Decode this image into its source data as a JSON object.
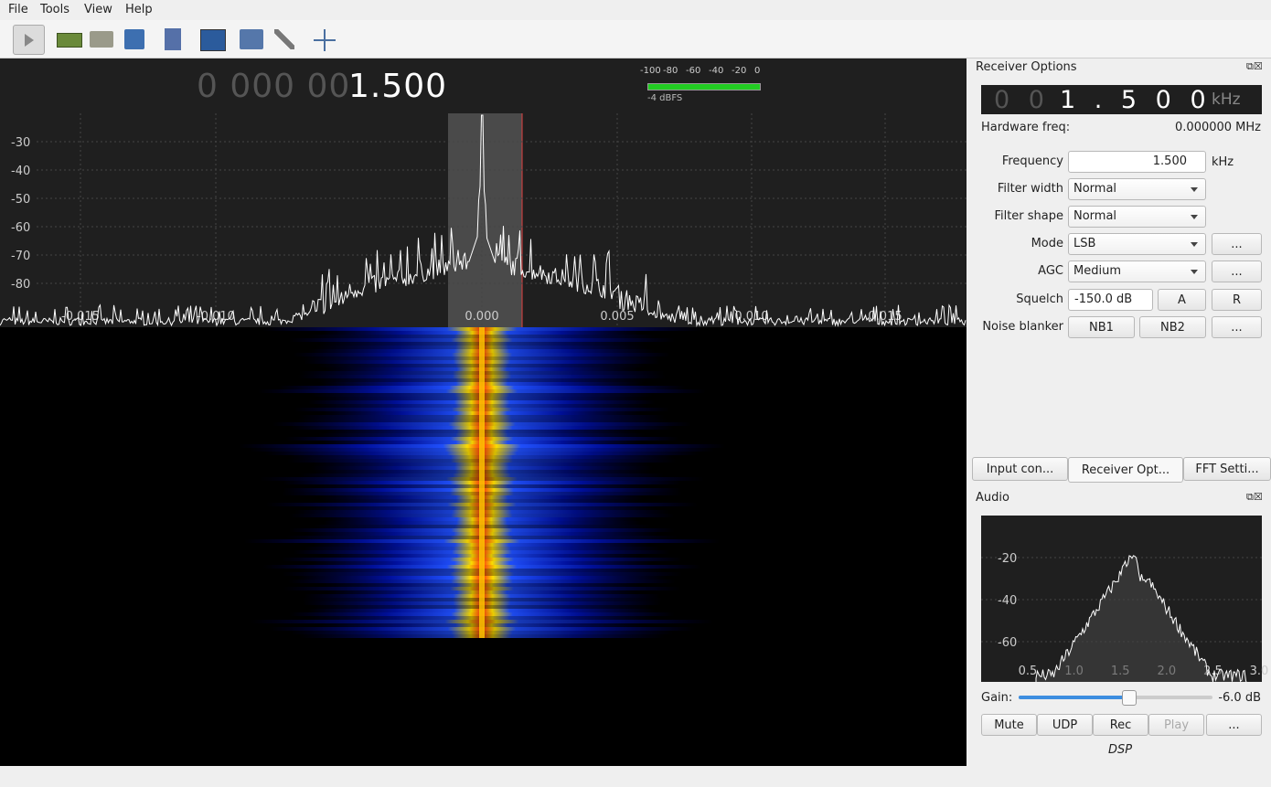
{
  "menu": [
    "File",
    "Tools",
    "View",
    "Help"
  ],
  "frequency_display": {
    "dim": "0 000 00",
    "bright": "1.500"
  },
  "meter": {
    "scale": [
      "-100",
      "-80",
      "-60",
      "-40",
      "-20",
      "0"
    ],
    "reading": "-4 dBFS"
  },
  "spectrum": {
    "y_labels": [
      "-30",
      "-40",
      "-50",
      "-60",
      "-70",
      "-80"
    ],
    "x_labels": [
      "-0.015",
      "-0.010",
      "0.000",
      "0.005",
      "0.010",
      "0.015"
    ]
  },
  "receiver_options": {
    "title": "Receiver Options",
    "lcd": {
      "dim": "0 0",
      "bright": "1 . 5 0 0",
      "unit": "kHz"
    },
    "hardware_freq_label": "Hardware freq:",
    "hardware_freq": "0.000000 MHz",
    "frequency_label": "Frequency",
    "frequency_value": "1.500",
    "frequency_unit": "kHz",
    "filter_width_label": "Filter width",
    "filter_width": "Normal",
    "filter_shape_label": "Filter shape",
    "filter_shape": "Normal",
    "mode_label": "Mode",
    "mode": "LSB",
    "agc_label": "AGC",
    "agc": "Medium",
    "squelch_label": "Squelch",
    "squelch": "-150.0 dB",
    "squelch_a": "A",
    "squelch_r": "R",
    "noise_blanker_label": "Noise blanker",
    "nb1": "NB1",
    "nb2": "NB2",
    "more": "..."
  },
  "tabs": [
    "Input con...",
    "Receiver Opt...",
    "FFT Setti..."
  ],
  "audio": {
    "title": "Audio",
    "y_labels": [
      "-20",
      "-40",
      "-60"
    ],
    "x_labels": [
      "0.5",
      "1.0",
      "1.5",
      "2.0",
      "2.5",
      "3.0"
    ],
    "gain_label": "Gain:",
    "gain": "-6.0 dB",
    "buttons": [
      "Mute",
      "UDP",
      "Rec",
      "Play",
      "..."
    ],
    "dsp": "DSP"
  }
}
